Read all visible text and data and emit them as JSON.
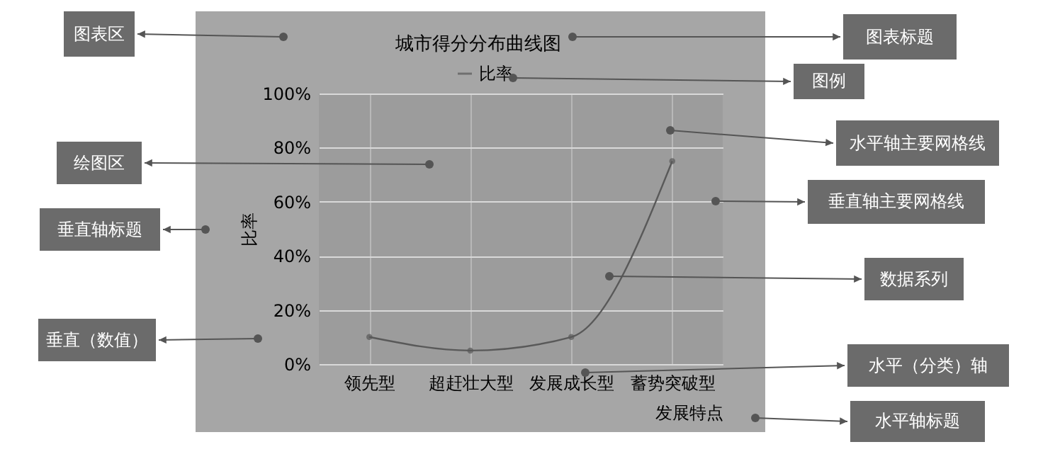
{
  "chart_data": {
    "type": "line",
    "title": "城市得分分布曲线图",
    "xlabel": "发展特点",
    "ylabel": "比率",
    "categories": [
      "领先型",
      "超赶壮大型",
      "发展成长型",
      "蓄势突破型"
    ],
    "series": [
      {
        "name": "比率",
        "color": "#595959",
        "values": [
          10,
          5,
          10,
          75
        ]
      }
    ],
    "ylim": [
      0,
      100
    ],
    "yticks": [
      {
        "value": 0,
        "label": "0%"
      },
      {
        "value": 20,
        "label": "20%"
      },
      {
        "value": 40,
        "label": "40%"
      },
      {
        "value": 60,
        "label": "60%"
      },
      {
        "value": 80,
        "label": "80%"
      },
      {
        "value": 100,
        "label": "100%"
      }
    ],
    "grid": true,
    "legend": "top",
    "marker": "circle",
    "line_style": "solid",
    "annotations": [
      "图表区",
      "绘图区",
      "垂直轴标题",
      "垂直（数值）",
      "图表标题",
      "图例",
      "水平轴主要网格线",
      "垂直轴主要网格线",
      "数据系列",
      "水平（分类）轴",
      "水平轴标题"
    ]
  }
}
